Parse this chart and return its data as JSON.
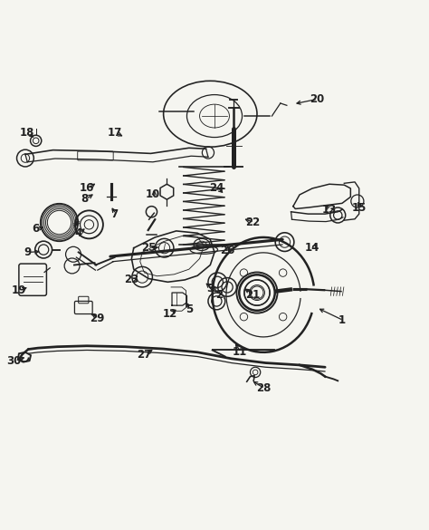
{
  "bg_color": "#f5f5f0",
  "figsize": [
    4.74,
    5.85
  ],
  "dpi": 100,
  "line_color": "#222222",
  "label_positions": {
    "1": [
      0.8,
      0.37,
      0.74,
      0.4
    ],
    "2": [
      0.51,
      0.43,
      0.49,
      0.455
    ],
    "3": [
      0.49,
      0.445,
      0.475,
      0.462
    ],
    "4": [
      0.18,
      0.575,
      0.2,
      0.59
    ],
    "5": [
      0.44,
      0.395,
      0.43,
      0.418
    ],
    "6": [
      0.08,
      0.585,
      0.105,
      0.59
    ],
    "7": [
      0.265,
      0.62,
      0.255,
      0.64
    ],
    "8": [
      0.195,
      0.655,
      0.22,
      0.67
    ],
    "9": [
      0.06,
      0.53,
      0.095,
      0.532
    ],
    "10": [
      0.355,
      0.665,
      0.36,
      0.682
    ],
    "11": [
      0.56,
      0.295,
      0.545,
      0.32
    ],
    "12": [
      0.395,
      0.385,
      0.415,
      0.4
    ],
    "13": [
      0.77,
      0.63,
      0.755,
      0.645
    ],
    "14": [
      0.73,
      0.54,
      0.745,
      0.555
    ],
    "15": [
      0.84,
      0.635,
      0.835,
      0.655
    ],
    "16": [
      0.2,
      0.68,
      0.225,
      0.695
    ],
    "17": [
      0.265,
      0.81,
      0.29,
      0.8
    ],
    "18": [
      0.06,
      0.81,
      0.08,
      0.795
    ],
    "19": [
      0.04,
      0.44,
      0.065,
      0.45
    ],
    "20": [
      0.74,
      0.89,
      0.685,
      0.878
    ],
    "21": [
      0.59,
      0.43,
      0.565,
      0.448
    ],
    "22": [
      0.59,
      0.6,
      0.565,
      0.61
    ],
    "23": [
      0.305,
      0.465,
      0.325,
      0.47
    ],
    "24": [
      0.505,
      0.68,
      0.525,
      0.665
    ],
    "25": [
      0.345,
      0.54,
      0.375,
      0.542
    ],
    "26": [
      0.53,
      0.535,
      0.53,
      0.552
    ],
    "27": [
      0.335,
      0.29,
      0.36,
      0.305
    ],
    "28": [
      0.615,
      0.21,
      0.585,
      0.23
    ],
    "29": [
      0.225,
      0.375,
      0.205,
      0.388
    ],
    "30": [
      0.028,
      0.275,
      0.06,
      0.285
    ]
  }
}
